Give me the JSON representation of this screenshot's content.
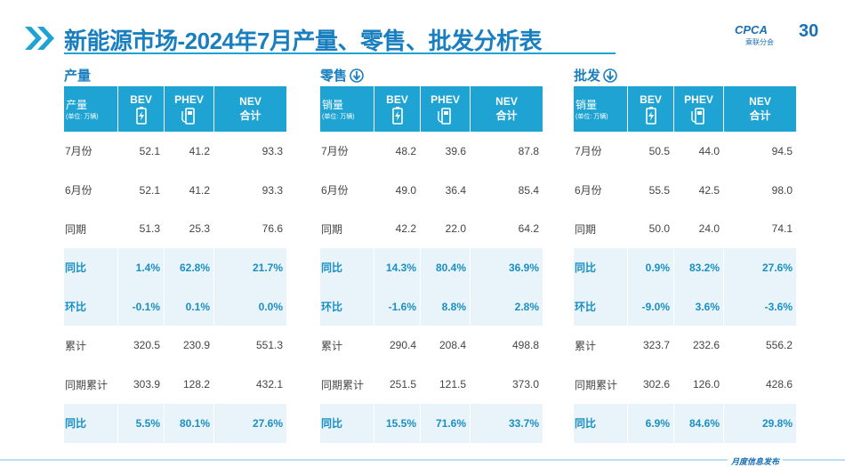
{
  "header": {
    "title": "新能源市场-2024年7月产量、零售、批发分析表",
    "logo": "CPCA",
    "logo_sub": "乘联分会",
    "badge": "30"
  },
  "tables": [
    {
      "section": "产量",
      "head_label": "产量",
      "head_unit": "(单位: 万辆)",
      "columns": [
        "BEV",
        "PHEV",
        "NEV"
      ],
      "total_label": "合计",
      "rows": [
        [
          "7月份",
          "52.1",
          "41.2",
          "93.3"
        ],
        [
          "6月份",
          "52.1",
          "41.2",
          "93.3"
        ],
        [
          "同期",
          "51.3",
          "25.3",
          "76.6"
        ],
        [
          "同比",
          "1.4%",
          "62.8%",
          "21.7%"
        ],
        [
          "环比",
          "-0.1%",
          "0.1%",
          "0.0%"
        ],
        [
          "累计",
          "320.5",
          "230.9",
          "551.3"
        ],
        [
          "同期累计",
          "303.9",
          "128.2",
          "432.1"
        ],
        [
          "同比",
          "5.5%",
          "80.1%",
          "27.6%"
        ]
      ]
    },
    {
      "section": "零售",
      "head_label": "销量",
      "head_unit": "(单位: 万辆)",
      "columns": [
        "BEV",
        "PHEV",
        "NEV"
      ],
      "total_label": "合计",
      "rows": [
        [
          "7月份",
          "48.2",
          "39.6",
          "87.8"
        ],
        [
          "6月份",
          "49.0",
          "36.4",
          "85.4"
        ],
        [
          "同期",
          "42.2",
          "22.0",
          "64.2"
        ],
        [
          "同比",
          "14.3%",
          "80.4%",
          "36.9%"
        ],
        [
          "环比",
          "-1.6%",
          "8.8%",
          "2.8%"
        ],
        [
          "累计",
          "290.4",
          "208.4",
          "498.8"
        ],
        [
          "同期累计",
          "251.5",
          "121.5",
          "373.0"
        ],
        [
          "同比",
          "15.5%",
          "71.6%",
          "33.7%"
        ]
      ]
    },
    {
      "section": "批发",
      "head_label": "销量",
      "head_unit": "(单位: 万辆)",
      "columns": [
        "BEV",
        "PHEV",
        "NEV"
      ],
      "total_label": "合计",
      "rows": [
        [
          "7月份",
          "50.5",
          "44.0",
          "94.5"
        ],
        [
          "6月份",
          "55.5",
          "42.5",
          "98.0"
        ],
        [
          "同期",
          "50.0",
          "24.0",
          "74.1"
        ],
        [
          "同比",
          "0.9%",
          "83.2%",
          "27.6%"
        ],
        [
          "环比",
          "-9.0%",
          "3.6%",
          "-3.6%"
        ],
        [
          "累计",
          "323.7",
          "232.6",
          "556.2"
        ],
        [
          "同期累计",
          "302.6",
          "126.0",
          "428.6"
        ],
        [
          "同比",
          "6.9%",
          "84.6%",
          "29.8%"
        ]
      ]
    }
  ],
  "footer": {
    "text": "月度信息发布"
  }
}
